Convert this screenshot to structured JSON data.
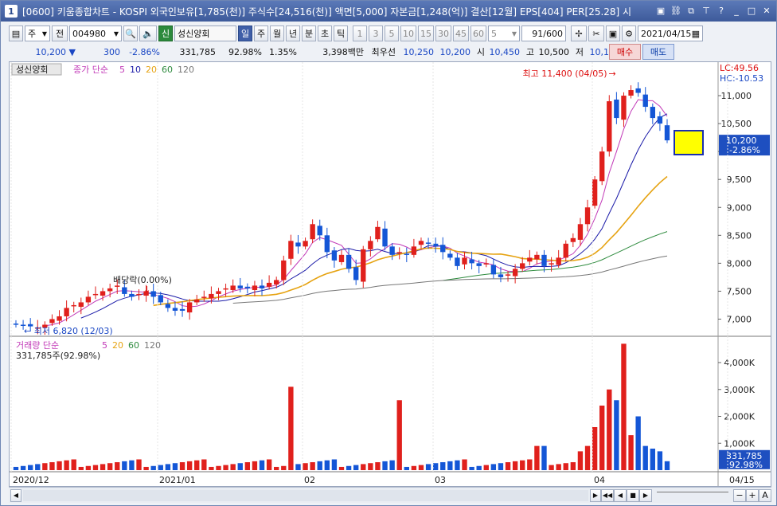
{
  "window": {
    "app_number": "1",
    "title": "[0600] 키움종합차트 - KOSPI 외국인보유[1,785(천)] 주식수[24,516(천)] 액면[5,000] 자본금[1,248(억)] 결산[12월] EPS[404] PER[25.28] 시"
  },
  "toolbar": {
    "type_label": "주",
    "prev_label": "전",
    "code": "004980",
    "credit_label": "신",
    "name": "성신양회",
    "periods": [
      "일",
      "주",
      "월",
      "년",
      "분",
      "초",
      "틱"
    ],
    "active_period": "일",
    "intervals": [
      "1",
      "3",
      "5",
      "10",
      "15",
      "30",
      "45",
      "60"
    ],
    "interval_value": "5",
    "count": "91/600",
    "date": "2021/04/15"
  },
  "quote": {
    "price": "10,200 ▼",
    "change": "300",
    "change_pct": "-2.86%",
    "volume": "331,785",
    "volume_ratio": "92.98%",
    "turnover": "1.35%",
    "amount": "3,398백만",
    "ask_label": "최우선",
    "ask1": "10,250",
    "ask2": "10,200",
    "open_label": "시",
    "open": "10,450",
    "high_label": "고",
    "high": "10,500",
    "low_label": "저",
    "low": "10,100",
    "buy_label": "매수",
    "sell_label": "매도"
  },
  "price_panel": {
    "stock_tag": "성신양회",
    "indicator_title": "종가 단순",
    "ma_periods": [
      "5",
      "10",
      "20",
      "60",
      "120"
    ],
    "lc": "LC:49.56",
    "hc": "HC:-10.53",
    "last_price": "10,200",
    "last_change": "-2.86%",
    "high_note": "최고 11,400 (04/05)",
    "low_note": "최저 6,820 (12/03)",
    "dividend_note": "배당락(0.00%)",
    "y_ticks": [
      "11,000",
      "10,500",
      "10,000",
      "9,500",
      "9,000",
      "8,500",
      "8,000",
      "7,500",
      "7,000"
    ]
  },
  "volume_panel": {
    "title": "거래량 단순",
    "ma_periods": [
      "5",
      "20",
      "60",
      "120"
    ],
    "info": "331,785주(92.98%)",
    "y_ticks": [
      "4,000K",
      "3,000K",
      "2,000K",
      "1,000K"
    ],
    "last_volume": "331,785",
    "last_ratio": "92.98%"
  },
  "x_axis": [
    "2020/12",
    "2021/01",
    "02",
    "03",
    "04",
    "04/15"
  ],
  "colors": {
    "up": "#e0201c",
    "down": "#1456d6",
    "ma5": "#c23ab8",
    "ma10": "#1a1aa8",
    "ma20": "#e6a312",
    "ma60": "#2e8b3e",
    "ma120": "#777777"
  },
  "chart_data": {
    "type": "candlestick",
    "ohlc_close": [
      6900,
      6880,
      6870,
      6850,
      6900,
      7000,
      7050,
      7200,
      7250,
      7300,
      7400,
      7450,
      7500,
      7550,
      7600,
      7450,
      7400,
      7450,
      7500,
      7400,
      7300,
      7200,
      7150,
      7150,
      7300,
      7350,
      7400,
      7450,
      7500,
      7550,
      7600,
      7550,
      7550,
      7600,
      7550,
      7650,
      7700,
      8050,
      8400,
      8300,
      8400,
      8700,
      8500,
      8200,
      8050,
      8150,
      7900,
      7700,
      8250,
      8400,
      8650,
      8300,
      8150,
      8200,
      8150,
      8300,
      8400,
      8350,
      8300,
      8200,
      8100,
      7950,
      8100,
      8000,
      7950,
      8000,
      7800,
      7750,
      7800,
      7900,
      8000,
      8100,
      8150,
      7950,
      8000,
      8100,
      8350,
      8450,
      8700,
      9000,
      9500,
      10000,
      10900,
      10600,
      11000,
      11100,
      11050,
      10800,
      10600,
      10500,
      10200
    ],
    "volume_peaks_k": [
      {
        "label": "2021/01 mid",
        "value": 3100
      },
      {
        "label": "02 early",
        "value": 2600
      },
      {
        "label": "04 early",
        "value": 4700
      }
    ],
    "high": 11400,
    "high_date": "04/05",
    "low": 6820,
    "low_date": "12/03",
    "ylim": [
      6750,
      11400
    ]
  }
}
